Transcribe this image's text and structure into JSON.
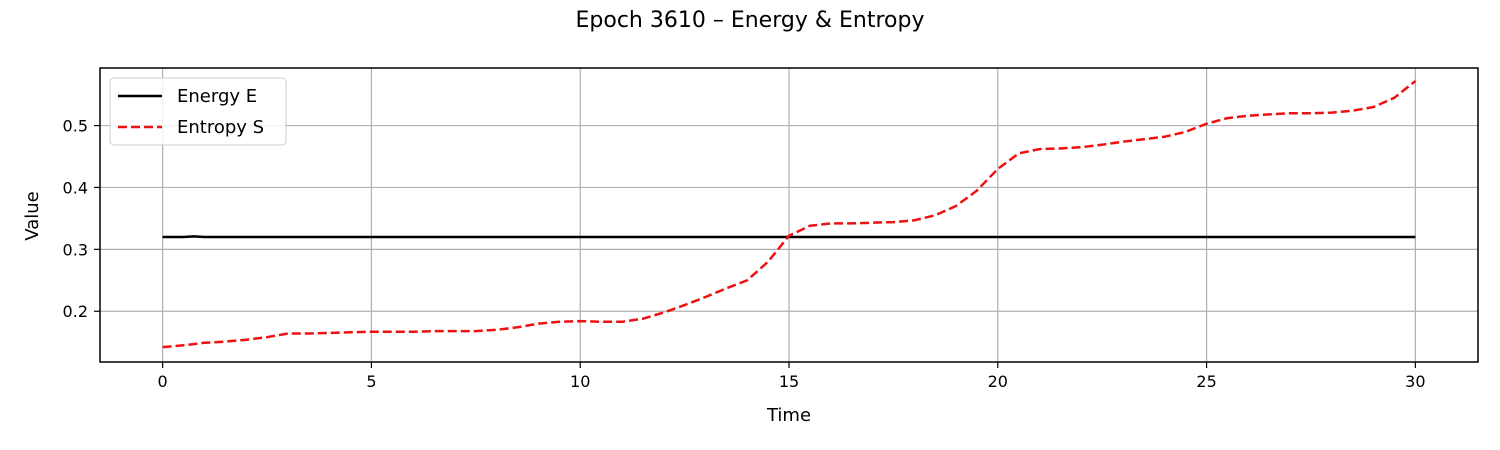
{
  "chart_data": {
    "type": "line",
    "title": "Epoch 3610 – Energy & Entropy",
    "xlabel": "Time",
    "ylabel": "Value",
    "xlim": [
      -1.5,
      31.5
    ],
    "ylim": [
      0.118,
      0.593
    ],
    "xticks": [
      0,
      5,
      10,
      15,
      20,
      25,
      30
    ],
    "yticks": [
      0.2,
      0.3,
      0.4,
      0.5
    ],
    "grid": true,
    "legend_position": "top-left",
    "series": [
      {
        "name": "Energy E",
        "color": "#000000",
        "style": "solid",
        "x": [
          0,
          0.5,
          0.75,
          1,
          2,
          5,
          10,
          13.5,
          14,
          15,
          20,
          25,
          30
        ],
        "y": [
          0.32,
          0.32,
          0.321,
          0.32,
          0.32,
          0.32,
          0.32,
          0.32,
          0.32,
          0.32,
          0.32,
          0.32,
          0.32
        ]
      },
      {
        "name": "Entropy S",
        "color": "#ee1111",
        "style": "dashed",
        "x": [
          0,
          0.5,
          1,
          1.5,
          2,
          2.5,
          3,
          3.5,
          4,
          4.5,
          5,
          5.5,
          6,
          6.5,
          7,
          7.5,
          8,
          8.5,
          9,
          9.5,
          10,
          10.5,
          11,
          11.5,
          12,
          12.5,
          13,
          13.5,
          14,
          14.5,
          15,
          15.5,
          16,
          16.5,
          17,
          17.5,
          18,
          18.5,
          19,
          19.5,
          20,
          20.5,
          21,
          21.5,
          22,
          22.5,
          23,
          23.5,
          24,
          24.5,
          25,
          25.5,
          26,
          26.5,
          27,
          27.5,
          28,
          28.5,
          29,
          29.5,
          30
        ],
        "y": [
          0.142,
          0.145,
          0.149,
          0.151,
          0.154,
          0.158,
          0.164,
          0.164,
          0.165,
          0.166,
          0.167,
          0.167,
          0.167,
          0.168,
          0.168,
          0.168,
          0.17,
          0.174,
          0.18,
          0.183,
          0.184,
          0.183,
          0.183,
          0.188,
          0.198,
          0.21,
          0.223,
          0.237,
          0.25,
          0.28,
          0.322,
          0.338,
          0.342,
          0.342,
          0.343,
          0.344,
          0.347,
          0.355,
          0.37,
          0.395,
          0.43,
          0.455,
          0.462,
          0.463,
          0.465,
          0.469,
          0.474,
          0.478,
          0.482,
          0.49,
          0.503,
          0.512,
          0.516,
          0.518,
          0.52,
          0.52,
          0.521,
          0.524,
          0.53,
          0.545,
          0.572
        ]
      }
    ]
  }
}
